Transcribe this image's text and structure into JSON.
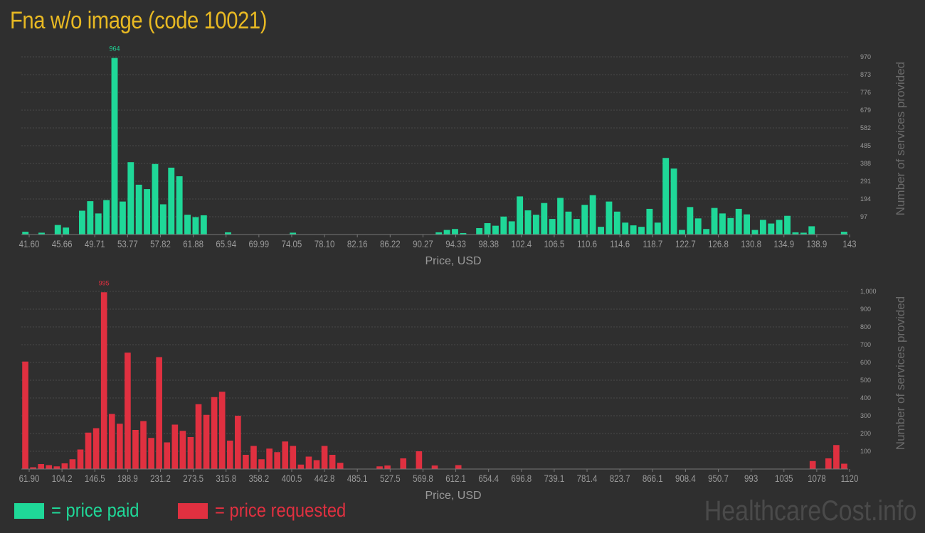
{
  "page": {
    "title": "Fna w/o image (code 10021)",
    "watermark": "HealthcareCost.info"
  },
  "legend": {
    "paid_label": "= price paid",
    "requested_label": "= price requested"
  },
  "colors": {
    "background": "#2f2f2f",
    "title": "#e8b923",
    "paid": "#1fd898",
    "requested": "#e03040",
    "axis_text": "#9a9a9a",
    "grid": "#4a4a4a"
  },
  "chart_data": [
    {
      "id": "paid",
      "type": "bar",
      "color": "#1fd898",
      "xlabel": "Price, USD",
      "ylabel": "Number of services provided",
      "ylim": [
        0,
        970
      ],
      "yticks": [
        "97",
        "194",
        "291",
        "388",
        "485",
        "582",
        "679",
        "776",
        "873",
        "970"
      ],
      "ytick_values": [
        97,
        194,
        291,
        388,
        485,
        582,
        679,
        776,
        873,
        970
      ],
      "xtick_labels": [
        "41.60",
        "45.66",
        "49.71",
        "53.77",
        "57.82",
        "61.88",
        "65.94",
        "69.99",
        "74.05",
        "78.10",
        "82.16",
        "86.22",
        "90.27",
        "94.33",
        "98.38",
        "102.4",
        "106.5",
        "110.6",
        "114.6",
        "118.7",
        "122.7",
        "126.8",
        "130.8",
        "134.9",
        "138.9",
        "143"
      ],
      "grid": true,
      "max_annotation": "964",
      "max_index": 11,
      "values": [
        15,
        0,
        10,
        0,
        52,
        38,
        0,
        130,
        182,
        115,
        188,
        964,
        180,
        395,
        272,
        248,
        385,
        165,
        365,
        318,
        108,
        95,
        105,
        0,
        0,
        12,
        0,
        0,
        0,
        0,
        0,
        0,
        0,
        10,
        0,
        0,
        0,
        0,
        0,
        0,
        0,
        0,
        0,
        0,
        0,
        0,
        0,
        0,
        0,
        0,
        0,
        12,
        25,
        30,
        8,
        0,
        35,
        62,
        48,
        98,
        72,
        208,
        132,
        108,
        172,
        85,
        200,
        125,
        85,
        162,
        215,
        42,
        180,
        125,
        65,
        50,
        42,
        140,
        65,
        418,
        360,
        25,
        150,
        88,
        30,
        145,
        115,
        90,
        140,
        110,
        25,
        80,
        60,
        80,
        102,
        12,
        10,
        45,
        0,
        0,
        0,
        15
      ]
    },
    {
      "id": "requested",
      "type": "bar",
      "color": "#e03040",
      "xlabel": "Price, USD",
      "ylabel": "Number of services provided",
      "ylim": [
        0,
        1000
      ],
      "yticks": [
        "100",
        "200",
        "300",
        "400",
        "500",
        "600",
        "700",
        "800",
        "900",
        "1,000"
      ],
      "ytick_values": [
        100,
        200,
        300,
        400,
        500,
        600,
        700,
        800,
        900,
        1000
      ],
      "xtick_labels": [
        "61.90",
        "104.2",
        "146.5",
        "188.9",
        "231.2",
        "273.5",
        "315.8",
        "358.2",
        "400.5",
        "442.8",
        "485.1",
        "527.5",
        "569.8",
        "612.1",
        "654.4",
        "696.8",
        "739.1",
        "781.4",
        "823.7",
        "866.1",
        "908.4",
        "950.7",
        "993",
        "1035",
        "1078",
        "1120"
      ],
      "grid": true,
      "max_annotation": "995",
      "max_index": 10,
      "values": [
        605,
        10,
        28,
        22,
        15,
        32,
        55,
        110,
        205,
        230,
        995,
        310,
        255,
        655,
        220,
        270,
        175,
        630,
        150,
        250,
        215,
        180,
        365,
        305,
        405,
        435,
        160,
        300,
        80,
        130,
        55,
        115,
        95,
        155,
        130,
        25,
        70,
        50,
        130,
        80,
        35,
        0,
        0,
        0,
        0,
        15,
        20,
        0,
        60,
        0,
        100,
        0,
        20,
        0,
        0,
        22,
        0,
        0,
        0,
        0,
        0,
        0,
        0,
        0,
        0,
        0,
        0,
        0,
        0,
        0,
        0,
        0,
        0,
        0,
        0,
        0,
        0,
        0,
        0,
        0,
        0,
        0,
        0,
        0,
        0,
        0,
        0,
        0,
        0,
        0,
        0,
        0,
        0,
        0,
        0,
        0,
        0,
        0,
        0,
        0,
        45,
        0,
        60,
        135,
        30
      ]
    }
  ]
}
